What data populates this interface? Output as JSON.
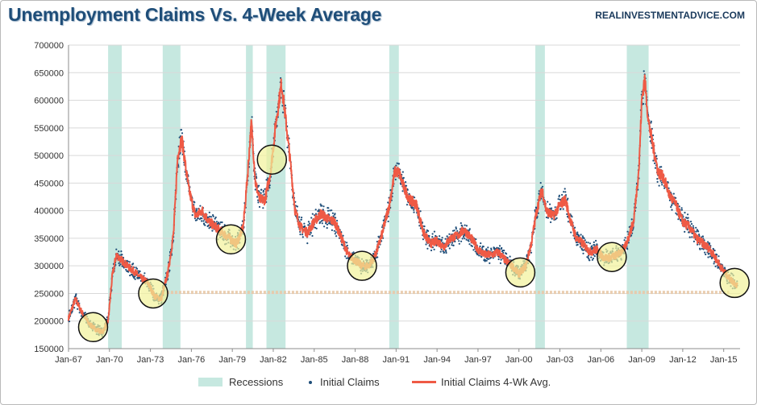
{
  "header": {
    "title": "Unemployment Claims Vs. 4-Week Average",
    "source": "REALINVESTMENTADVICE.COM"
  },
  "colors": {
    "recession": "#c6e8e0",
    "claims_dots": "#1f4e79",
    "avg_line": "#ef5a45",
    "highlight_fill": "#f2f29a",
    "support_line": "#e8c9a8"
  },
  "chart_data": {
    "type": "line",
    "title": "Unemployment Claims Vs. 4-Week Average",
    "xlabel": "",
    "ylabel": "",
    "xlim": [
      1967.0,
      2016.2
    ],
    "ylim": [
      150000,
      700000
    ],
    "grid": true,
    "legend_position": "bottom",
    "y_ticks": [
      "150000",
      "200000",
      "250000",
      "300000",
      "350000",
      "400000",
      "450000",
      "500000",
      "550000",
      "600000",
      "650000",
      "700000"
    ],
    "x_ticks": [
      "Jan-67",
      "Jan-70",
      "Jan-73",
      "Jan-76",
      "Jan-79",
      "Jan-82",
      "Jan-85",
      "Jan-88",
      "Jan-91",
      "Jan-94",
      "Jan-97",
      "Jan-00",
      "Jan-03",
      "Jan-06",
      "Jan-09",
      "Jan-12",
      "Jan-15"
    ],
    "recessions": [
      [
        1969.9,
        1970.9
      ],
      [
        1973.9,
        1975.2
      ],
      [
        1980.0,
        1980.5
      ],
      [
        1981.5,
        1982.9
      ],
      [
        1990.5,
        1991.2
      ],
      [
        2001.2,
        2001.9
      ],
      [
        2007.9,
        2009.5
      ]
    ],
    "series": [
      {
        "name": "Initial Claims 4-Wk Avg.",
        "x": [
          1967.0,
          1967.5,
          1968.0,
          1968.5,
          1969.0,
          1969.5,
          1969.9,
          1970.2,
          1970.5,
          1970.9,
          1971.3,
          1971.8,
          1972.2,
          1972.8,
          1973.3,
          1973.8,
          1974.3,
          1974.7,
          1975.0,
          1975.3,
          1975.8,
          1976.3,
          1976.8,
          1977.3,
          1977.8,
          1978.3,
          1978.8,
          1979.3,
          1979.8,
          1980.1,
          1980.4,
          1980.7,
          1981.0,
          1981.4,
          1981.8,
          1982.2,
          1982.6,
          1982.8,
          1983.2,
          1983.6,
          1984.0,
          1984.5,
          1985.0,
          1985.5,
          1986.0,
          1986.5,
          1987.0,
          1987.5,
          1988.0,
          1988.5,
          1989.0,
          1989.5,
          1990.0,
          1990.5,
          1990.9,
          1991.2,
          1991.6,
          1992.0,
          1992.5,
          1993.0,
          1993.5,
          1994.0,
          1994.5,
          1995.0,
          1995.5,
          1996.0,
          1996.5,
          1997.0,
          1997.5,
          1998.0,
          1998.5,
          1999.0,
          1999.5,
          2000.0,
          2000.5,
          2000.9,
          2001.3,
          2001.7,
          2002.0,
          2002.5,
          2003.0,
          2003.4,
          2003.8,
          2004.2,
          2004.7,
          2005.2,
          2005.7,
          2006.2,
          2006.7,
          2007.2,
          2007.7,
          2008.0,
          2008.4,
          2008.8,
          2009.0,
          2009.2,
          2009.5,
          2009.8,
          2010.2,
          2010.6,
          2011.0,
          2011.5,
          2012.0,
          2012.5,
          2013.0,
          2013.5,
          2014.0,
          2014.5,
          2015.0,
          2015.5,
          2016.0
        ],
        "values": [
          205000,
          240000,
          215000,
          195000,
          185000,
          180000,
          200000,
          280000,
          320000,
          310000,
          300000,
          290000,
          280000,
          270000,
          245000,
          240000,
          290000,
          360000,
          500000,
          530000,
          440000,
          390000,
          400000,
          380000,
          370000,
          360000,
          350000,
          340000,
          370000,
          460000,
          560000,
          450000,
          420000,
          420000,
          470000,
          560000,
          630000,
          590000,
          500000,
          400000,
          370000,
          360000,
          380000,
          395000,
          385000,
          380000,
          350000,
          320000,
          310000,
          300000,
          300000,
          320000,
          360000,
          410000,
          470000,
          470000,
          440000,
          420000,
          410000,
          360000,
          340000,
          345000,
          335000,
          350000,
          355000,
          365000,
          350000,
          330000,
          320000,
          320000,
          325000,
          310000,
          300000,
          285000,
          300000,
          340000,
          400000,
          440000,
          400000,
          390000,
          410000,
          420000,
          380000,
          350000,
          340000,
          325000,
          330000,
          315000,
          315000,
          320000,
          330000,
          350000,
          380000,
          480000,
          600000,
          640000,
          560000,
          520000,
          470000,
          460000,
          430000,
          410000,
          380000,
          370000,
          350000,
          340000,
          330000,
          310000,
          290000,
          275000,
          265000
        ]
      },
      {
        "name": "Initial Claims",
        "style": "dots",
        "derived_from": "Initial Claims 4-Wk Avg.",
        "spread": 12000
      }
    ],
    "support_level": 252000
  },
  "legend": {
    "recessions": "Recessions",
    "claims": "Initial Claims",
    "avg": "Initial Claims 4-Wk Avg."
  }
}
